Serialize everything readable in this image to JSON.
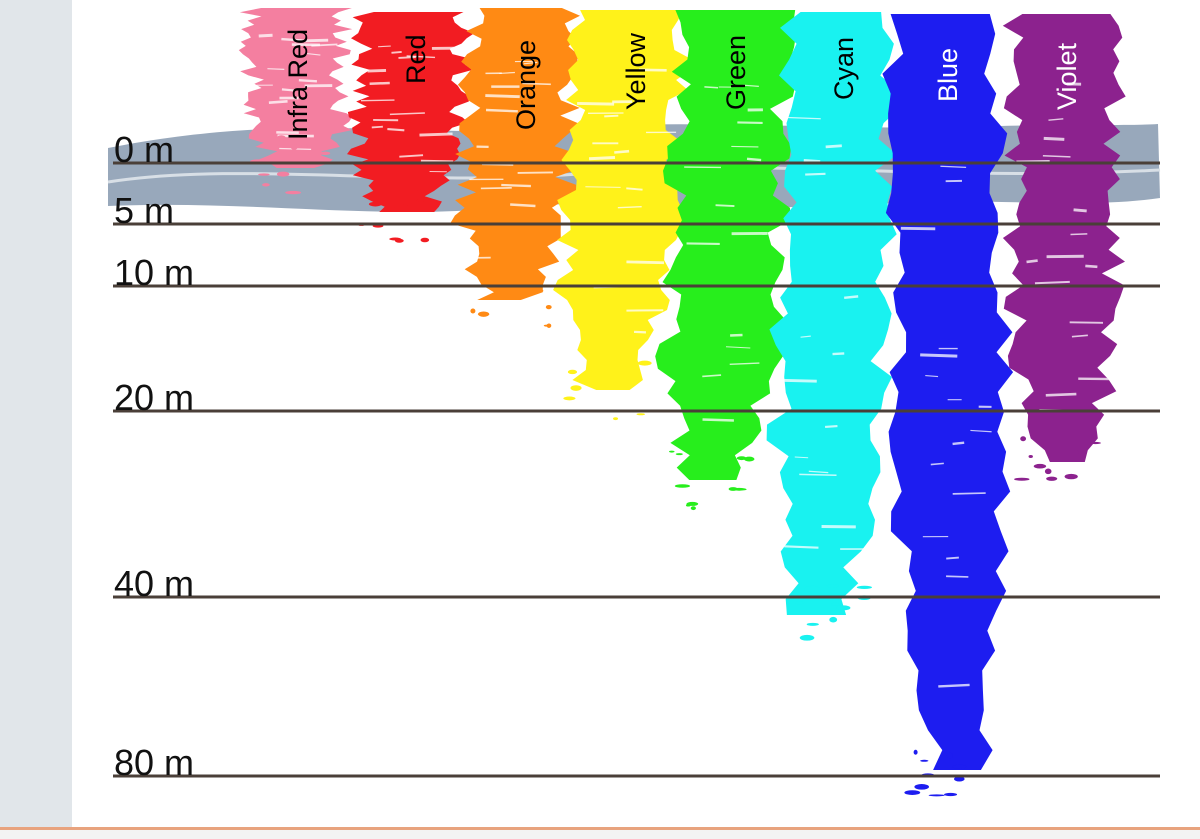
{
  "bands": [
    {
      "label": "Infra Red",
      "color": "#f47fa0"
    },
    {
      "label": "Red",
      "color": "#f21c22"
    },
    {
      "label": "Orange",
      "color": "#ff8a14"
    },
    {
      "label": "Yellow",
      "color": "#fff21a"
    },
    {
      "label": "Green",
      "color": "#27ee1c"
    },
    {
      "label": "Cyan",
      "color": "#19f2f0"
    },
    {
      "label": "Blue",
      "color": "#1d1df0"
    },
    {
      "label": "Violet",
      "color": "#8c228e"
    }
  ],
  "depths": [
    {
      "label": "0 m"
    },
    {
      "label": "5 m"
    },
    {
      "label": "10 m"
    },
    {
      "label": "20 m"
    },
    {
      "label": "40 m"
    },
    {
      "label": "80 m"
    }
  ],
  "water_color": "#8d9fb4"
}
